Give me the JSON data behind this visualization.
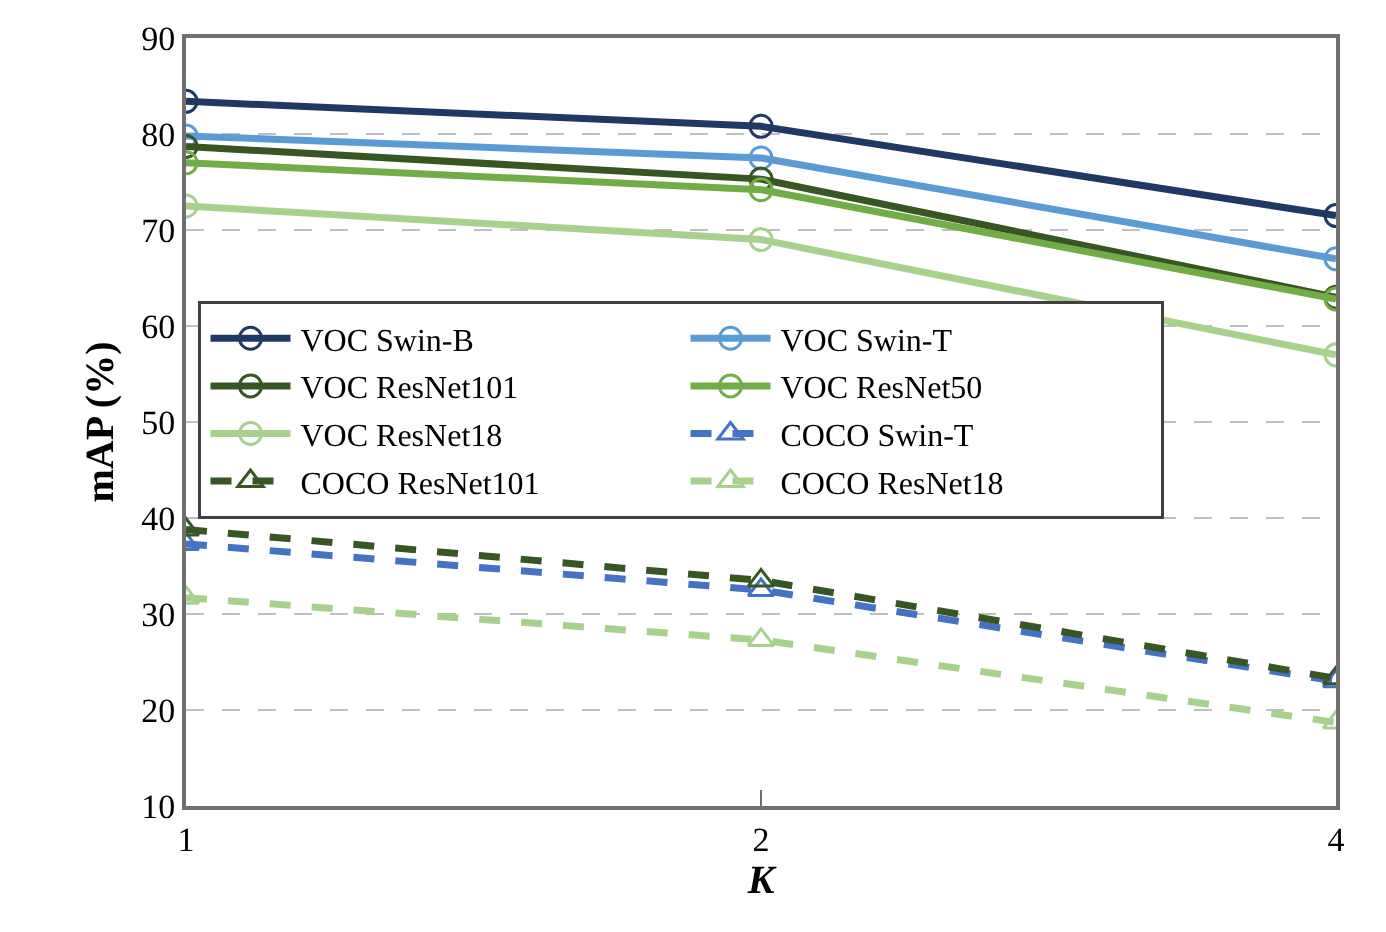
{
  "chart_data": {
    "type": "line",
    "xlabel": "K",
    "ylabel": "mAP (%)",
    "categories": [
      "1",
      "2",
      "4"
    ],
    "ylim": [
      10,
      90
    ],
    "yticks": [
      10,
      20,
      30,
      40,
      50,
      60,
      70,
      80,
      90
    ],
    "grid": "y",
    "legend": "center left",
    "series": [
      {
        "name": "VOC Swin-B",
        "color": "#203864",
        "values": [
          83.4,
          80.8,
          71.5
        ],
        "marker": "circle",
        "line_style": "solid"
      },
      {
        "name": "VOC Swin-T",
        "color": "#5b9bd5",
        "values": [
          79.8,
          77.5,
          67.0
        ],
        "marker": "circle",
        "line_style": "solid"
      },
      {
        "name": "VOC ResNet101",
        "color": "#375623",
        "values": [
          78.7,
          75.3,
          63.0
        ],
        "marker": "circle",
        "line_style": "solid"
      },
      {
        "name": "VOC ResNet50",
        "color": "#70ad47",
        "values": [
          77.0,
          74.2,
          62.8
        ],
        "marker": "circle",
        "line_style": "solid"
      },
      {
        "name": "VOC ResNet18",
        "color": "#a9d18e",
        "values": [
          72.5,
          69.0,
          57.0
        ],
        "marker": "circle",
        "line_style": "solid"
      },
      {
        "name": "COCO Swin-T",
        "color": "#4472c4",
        "values": [
          37.3,
          32.5,
          23.0
        ],
        "marker": "triangle",
        "line_style": "dashed"
      },
      {
        "name": "COCO ResNet101",
        "color": "#375623",
        "values": [
          38.8,
          33.5,
          23.3
        ],
        "marker": "triangle",
        "line_style": "dashed"
      },
      {
        "name": "COCO ResNet18",
        "color": "#a9d18e",
        "values": [
          31.7,
          27.3,
          18.7
        ],
        "marker": "triangle",
        "line_style": "dashed"
      }
    ]
  }
}
